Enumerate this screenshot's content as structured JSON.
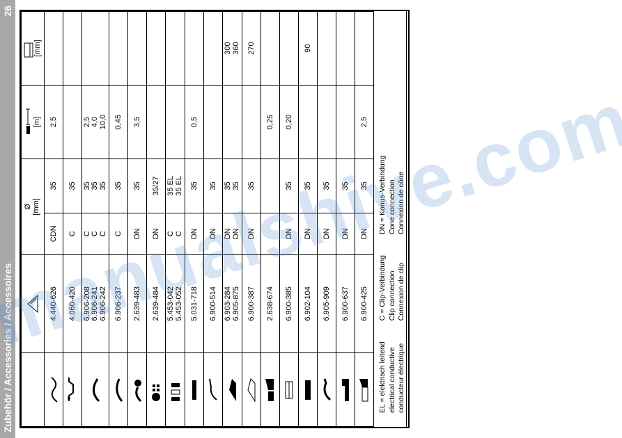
{
  "watermark": "manualshive.com",
  "header": {
    "title": "Zubehör / Accessories / Accessoires",
    "page": "26"
  },
  "columns": {
    "diameter_label": "Ø",
    "diameter_unit": "[mm]",
    "length_unit": "[m]",
    "width_unit": "[mm]"
  },
  "rows": [
    {
      "part": [
        "4.440-626"
      ],
      "conn": [
        "CDN"
      ],
      "dia": [
        "35"
      ],
      "len": [
        "2,5"
      ],
      "wid": []
    },
    {
      "part": [
        "4.060-420"
      ],
      "conn": [
        "C"
      ],
      "dia": [
        "35"
      ],
      "len": [],
      "wid": []
    },
    {
      "part": [
        "6.906-208",
        "6.906-241",
        "6.906-242"
      ],
      "conn": [
        "C",
        "C",
        "C"
      ],
      "dia": [
        "35",
        "35",
        "35"
      ],
      "len": [
        "2,5",
        "4,0",
        "10,0"
      ],
      "wid": []
    },
    {
      "part": [
        "6.906-237"
      ],
      "conn": [
        "C"
      ],
      "dia": [
        "35"
      ],
      "len": [
        "0,45"
      ],
      "wid": []
    },
    {
      "part": [
        "2.639-483"
      ],
      "conn": [
        "DN"
      ],
      "dia": [
        "35"
      ],
      "len": [
        "3,5"
      ],
      "wid": []
    },
    {
      "part": [
        "2.639-484"
      ],
      "conn": [
        "DN"
      ],
      "dia": [
        "35/27"
      ],
      "len": [],
      "wid": []
    },
    {
      "part": [
        "5.453-042",
        "5.453-052"
      ],
      "conn": [
        "C",
        "C"
      ],
      "dia": [
        "35 EL",
        "35 EL"
      ],
      "len": [],
      "wid": []
    },
    {
      "part": [
        "5.031-718"
      ],
      "conn": [
        "DN"
      ],
      "dia": [
        "35"
      ],
      "len": [
        "0,5"
      ],
      "wid": []
    },
    {
      "part": [
        "6.900-514"
      ],
      "conn": [
        "DN"
      ],
      "dia": [
        "35"
      ],
      "len": [],
      "wid": []
    },
    {
      "part": [
        "6.903-284",
        "6.905-875"
      ],
      "conn": [
        "DN",
        "DN"
      ],
      "dia": [
        "35",
        "35"
      ],
      "len": [],
      "wid": [
        "300",
        "360"
      ]
    },
    {
      "part": [
        "6.900-387"
      ],
      "conn": [
        "DN"
      ],
      "dia": [
        "35"
      ],
      "len": [],
      "wid": [
        "270"
      ]
    },
    {
      "part": [
        "2.638-674"
      ],
      "conn": [],
      "dia": [],
      "len": [
        "0,25"
      ],
      "wid": []
    },
    {
      "part": [
        "6.900-385"
      ],
      "conn": [
        "DN"
      ],
      "dia": [
        "35"
      ],
      "len": [
        "0,20"
      ],
      "wid": []
    },
    {
      "part": [
        "6.902-104"
      ],
      "conn": [
        "DN"
      ],
      "dia": [
        "35"
      ],
      "len": [],
      "wid": [
        "90"
      ]
    },
    {
      "part": [
        "6.905-909"
      ],
      "conn": [
        "DN"
      ],
      "dia": [
        "35"
      ],
      "len": [],
      "wid": []
    },
    {
      "part": [
        "6.900-637"
      ],
      "conn": [
        "DN"
      ],
      "dia": [
        "35"
      ],
      "len": [],
      "wid": []
    },
    {
      "part": [
        "6.900-425"
      ],
      "conn": [
        "DN"
      ],
      "dia": [
        "35"
      ],
      "len": [
        "2,5"
      ],
      "wid": []
    }
  ],
  "legend": {
    "el": [
      "EL = elektrisch leitend",
      "electrical conductive",
      "conducteur électrique"
    ],
    "c": [
      "C = Clip-Verbindung",
      "Clip connection",
      "Connexion de clip"
    ],
    "dn": [
      "DN = Konus-Verbindung",
      "Cone connection",
      "Connexion de cône"
    ]
  }
}
